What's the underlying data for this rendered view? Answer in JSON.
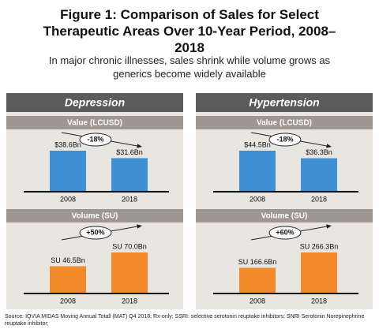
{
  "title": "Figure 1: Comparison of Sales for Select Therapeutic Areas Over 10-Year Period, 2008–2018",
  "subtitle": "In major chronic illnesses, sales shrink while volume grows as generics become widely available",
  "panels": [
    "Depression",
    "Hypertension"
  ],
  "source": "Source: IQVIA MIDAS Moving Annual Totall (MAT) Q4 2018; Rx-only; SSRI: selective serotonin reuptake inhibitors; SNRI Serotonin Norepinephrine reuptake inhibitor;",
  "chart_data": [
    {
      "type": "bar",
      "panel": 0,
      "title": "Value (LCUSD)",
      "categories": [
        "2008",
        "2018"
      ],
      "values": [
        38.6,
        31.6
      ],
      "value_labels": [
        "$38.6Bn",
        "$31.6Bn"
      ],
      "annotation": "-18%",
      "color": "#3f8fd4"
    },
    {
      "type": "bar",
      "panel": 0,
      "title": "Volume (SU)",
      "categories": [
        "2008",
        "2018"
      ],
      "values": [
        46.5,
        70.0
      ],
      "value_labels": [
        "SU 46.5Bn",
        "SU 70.0Bn"
      ],
      "annotation": "+50%",
      "color": "#f28a2a"
    },
    {
      "type": "bar",
      "panel": 1,
      "title": "Value (LCUSD)",
      "categories": [
        "2008",
        "2018"
      ],
      "values": [
        44.5,
        36.3
      ],
      "value_labels": [
        "$44.5Bn",
        "$36.3Bn"
      ],
      "annotation": "-18%",
      "color": "#3f8fd4"
    },
    {
      "type": "bar",
      "panel": 1,
      "title": "Volume (SU)",
      "categories": [
        "2008",
        "2018"
      ],
      "values": [
        166.6,
        266.3
      ],
      "value_labels": [
        "SU 166.6Bn",
        "SU 266.3Bn"
      ],
      "annotation": "+60%",
      "color": "#f28a2a"
    }
  ]
}
